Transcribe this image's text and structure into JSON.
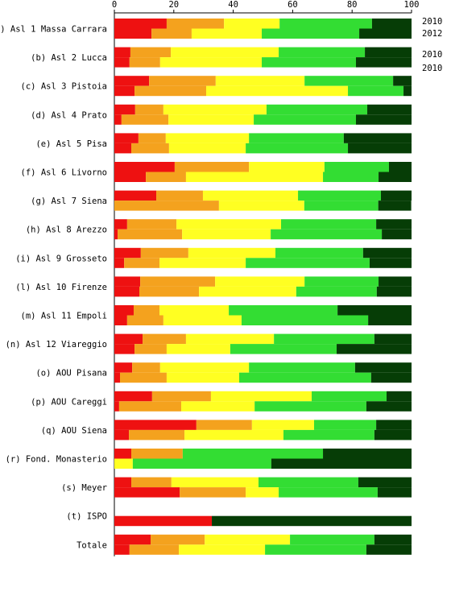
{
  "chart_data": {
    "type": "stacked-barh",
    "categories": [
      "a) Asl 1 Massa Carrara",
      "(b) Asl 2 Lucca",
      "(c) Asl 3 Pistoia",
      "(d) Asl 4 Prato",
      "(e) Asl 5 Pisa",
      "(f) Asl 6 Livorno",
      "(g) Asl 7 Siena",
      "(h) Asl 8 Arezzo",
      "(i) Asl 9 Grosseto",
      "(l) Asl 10 Firenze",
      "(m) Asl 11 Empoli",
      "(n) Asl 12 Viareggio",
      "(o) AOU Pisana",
      "(p) AOU Careggi",
      "(q) AOU Siena",
      "(r) Fond. Monasterio",
      "(s) Meyer",
      "(t) ISPO",
      "Totale"
    ],
    "bars": [
      {
        "series": [
          {
            "color": "#ee1111",
            "values": [
              17.6,
              5.4,
              11.7,
              7.0,
              8.1,
              20.3,
              14.1,
              4.3,
              8.9,
              8.7,
              6.5,
              9.5,
              6.0,
              12.7,
              27.6,
              5.7,
              5.7,
              null,
              12.2
            ]
          },
          {
            "color": "#f4a21e",
            "values": [
              19.3,
              13.6,
              22.4,
              9.5,
              9.2,
              25.0,
              15.7,
              16.6,
              16.0,
              25.2,
              8.7,
              14.6,
              9.4,
              19.8,
              18.7,
              17.3,
              13.5,
              null,
              18.2
            ]
          },
          {
            "color": "#ffff22",
            "values": [
              18.7,
              36.3,
              29.9,
              34.7,
              28.0,
              25.4,
              32.0,
              35.2,
              29.3,
              30.1,
              23.3,
              29.6,
              29.9,
              33.9,
              20.9,
              0,
              29.3,
              null,
              28.7
            ]
          },
          {
            "color": "#33dd33",
            "values": [
              31.1,
              29.0,
              29.8,
              33.9,
              31.9,
              21.7,
              27.9,
              32.0,
              29.5,
              24.9,
              36.6,
              33.8,
              35.7,
              25.2,
              20.9,
              47.2,
              33.6,
              null,
              28.4
            ]
          },
          {
            "color": "#063d06",
            "values": [
              13.3,
              15.7,
              6.2,
              14.9,
              22.8,
              7.6,
              10.3,
              11.9,
              16.3,
              11.1,
              24.9,
              12.5,
              19.0,
              8.4,
              11.9,
              29.8,
              17.9,
              null,
              12.5
            ]
          }
        ]
      },
      {
        "series": [
          {
            "color": "#ee1111",
            "values": [
              12.5,
              5.1,
              6.8,
              2.4,
              5.7,
              10.6,
              0,
              1.1,
              3.3,
              8.4,
              4.3,
              6.8,
              1.9,
              1.6,
              4.9,
              0,
              22.0,
              32.8,
              5.1
            ]
          },
          {
            "color": "#f4a21e",
            "values": [
              13.5,
              10.3,
              24.1,
              15.8,
              12.7,
              13.5,
              35.2,
              21.7,
              11.9,
              20.1,
              12.2,
              10.8,
              15.7,
              20.9,
              18.7,
              0,
              22.2,
              0,
              16.6
            ]
          },
          {
            "color": "#ffff22",
            "values": [
              23.6,
              34.2,
              47.7,
              28.7,
              25.8,
              46.1,
              28.7,
              29.8,
              29.0,
              32.7,
              26.3,
              21.4,
              24.4,
              24.7,
              33.3,
              6.2,
              11.1,
              0,
              29.0
            ]
          },
          {
            "color": "#33dd33",
            "values": [
              32.8,
              31.7,
              18.7,
              34.4,
              34.4,
              18.7,
              24.9,
              37.4,
              41.7,
              27.1,
              42.6,
              35.8,
              44.4,
              37.6,
              30.6,
              46.6,
              33.3,
              0,
              34.1
            ]
          },
          {
            "color": "#063d06",
            "values": [
              17.6,
              18.7,
              2.7,
              18.7,
              21.4,
              11.1,
              11.1,
              10.0,
              14.1,
              11.7,
              14.6,
              25.2,
              13.6,
              15.2,
              12.5,
              47.2,
              11.4,
              67.2,
              15.2
            ]
          }
        ]
      }
    ],
    "annotations": [
      "2010",
      "2012",
      "2010",
      "2010"
    ],
    "xlim": [
      0,
      100
    ],
    "xticks": [
      0,
      20,
      40,
      60,
      80,
      100
    ]
  }
}
